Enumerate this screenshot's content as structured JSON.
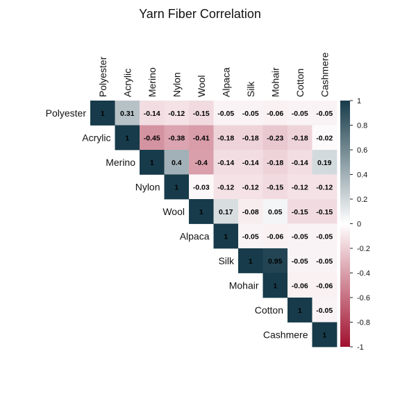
{
  "chart_data": {
    "type": "heatmap",
    "title": "Yarn Fiber Correlation",
    "variables": [
      "Polyester",
      "Acrylic",
      "Merino",
      "Nylon",
      "Wool",
      "Alpaca",
      "Silk",
      "Mohair",
      "Cotton",
      "Cashmere"
    ],
    "matrix_upper": [
      [
        1,
        0.31,
        -0.14,
        -0.12,
        -0.15,
        -0.05,
        -0.05,
        -0.06,
        -0.05,
        -0.05
      ],
      [
        null,
        1,
        -0.45,
        -0.38,
        -0.41,
        -0.18,
        -0.18,
        -0.23,
        -0.18,
        -0.02
      ],
      [
        null,
        null,
        1,
        0.4,
        -0.4,
        -0.14,
        -0.14,
        -0.18,
        -0.14,
        0.19
      ],
      [
        null,
        null,
        null,
        1,
        -0.03,
        -0.12,
        -0.12,
        -0.15,
        -0.12,
        -0.12
      ],
      [
        null,
        null,
        null,
        null,
        1,
        0.17,
        -0.08,
        0.05,
        -0.15,
        -0.15
      ],
      [
        null,
        null,
        null,
        null,
        null,
        1,
        -0.05,
        -0.06,
        -0.05,
        -0.05
      ],
      [
        null,
        null,
        null,
        null,
        null,
        null,
        1,
        0.95,
        -0.05,
        -0.05
      ],
      [
        null,
        null,
        null,
        null,
        null,
        null,
        null,
        1,
        -0.06,
        -0.06
      ],
      [
        null,
        null,
        null,
        null,
        null,
        null,
        null,
        null,
        1,
        -0.05
      ],
      [
        null,
        null,
        null,
        null,
        null,
        null,
        null,
        null,
        null,
        1
      ]
    ],
    "colorbar": {
      "range": [
        -1,
        1
      ],
      "ticks": [
        "1",
        "0.8",
        "0.6",
        "0.4",
        "0.2",
        "0",
        "-0.2",
        "-0.4",
        "-0.6",
        "-0.8",
        "-1"
      ],
      "colors": {
        "negative": "#a0102e",
        "neutral": "#ffffff",
        "positive": "#173b4a"
      }
    }
  }
}
